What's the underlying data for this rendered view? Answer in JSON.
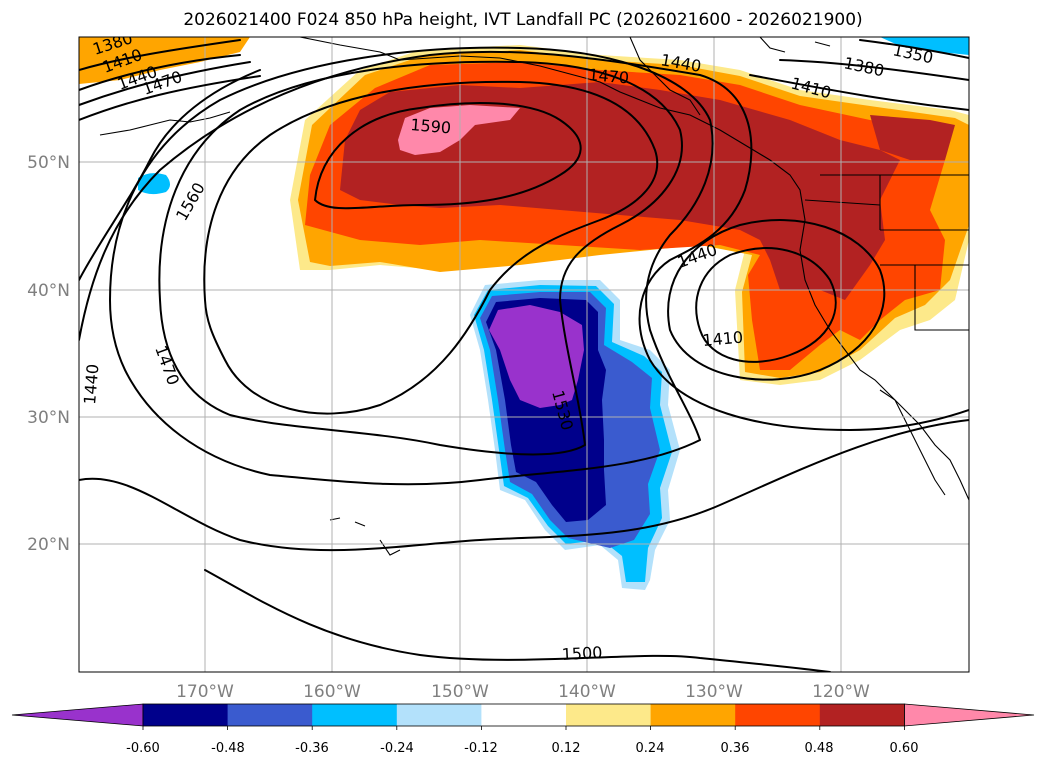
{
  "title": "2026021400 F024 850 hPa height, IVT Landfall PC (2026021600 - 2026021900)",
  "lon_labels": [
    "170°W",
    "160°W",
    "150°W",
    "140°W",
    "130°W",
    "120°W"
  ],
  "lat_labels": [
    "50°N",
    "40°N",
    "30°N",
    "20°N"
  ],
  "contour_labels": [
    "1380",
    "1410",
    "1440",
    "1470",
    "1350",
    "1380",
    "1410",
    "1440",
    "1470",
    "1590",
    "1560",
    "1440",
    "1410",
    "1470",
    "1530",
    "1500",
    "1440"
  ],
  "colorbar": {
    "colors": [
      "#9932cc",
      "#00008b",
      "#3a5bcf",
      "#00bfff",
      "#b3e1fb",
      "#ffffff",
      "#fde98a",
      "#ffa500",
      "#ff4500",
      "#b22222",
      "#ff88aa"
    ],
    "tick_labels": [
      "-0.60",
      "-0.48",
      "-0.36",
      "-0.24",
      "-0.12",
      "0.12",
      "0.24",
      "0.36",
      "0.48",
      "0.60"
    ]
  },
  "fill_colors": {
    "yellow": "#fde98a",
    "orange": "#ffa500",
    "redorange": "#ff4500",
    "darkred": "#b22222",
    "pink": "#ff88aa",
    "lightblue": "#b3e1fb",
    "cyan": "#00bfff",
    "royal": "#3a5bcf",
    "navy": "#00008b",
    "purple": "#9932cc"
  }
}
